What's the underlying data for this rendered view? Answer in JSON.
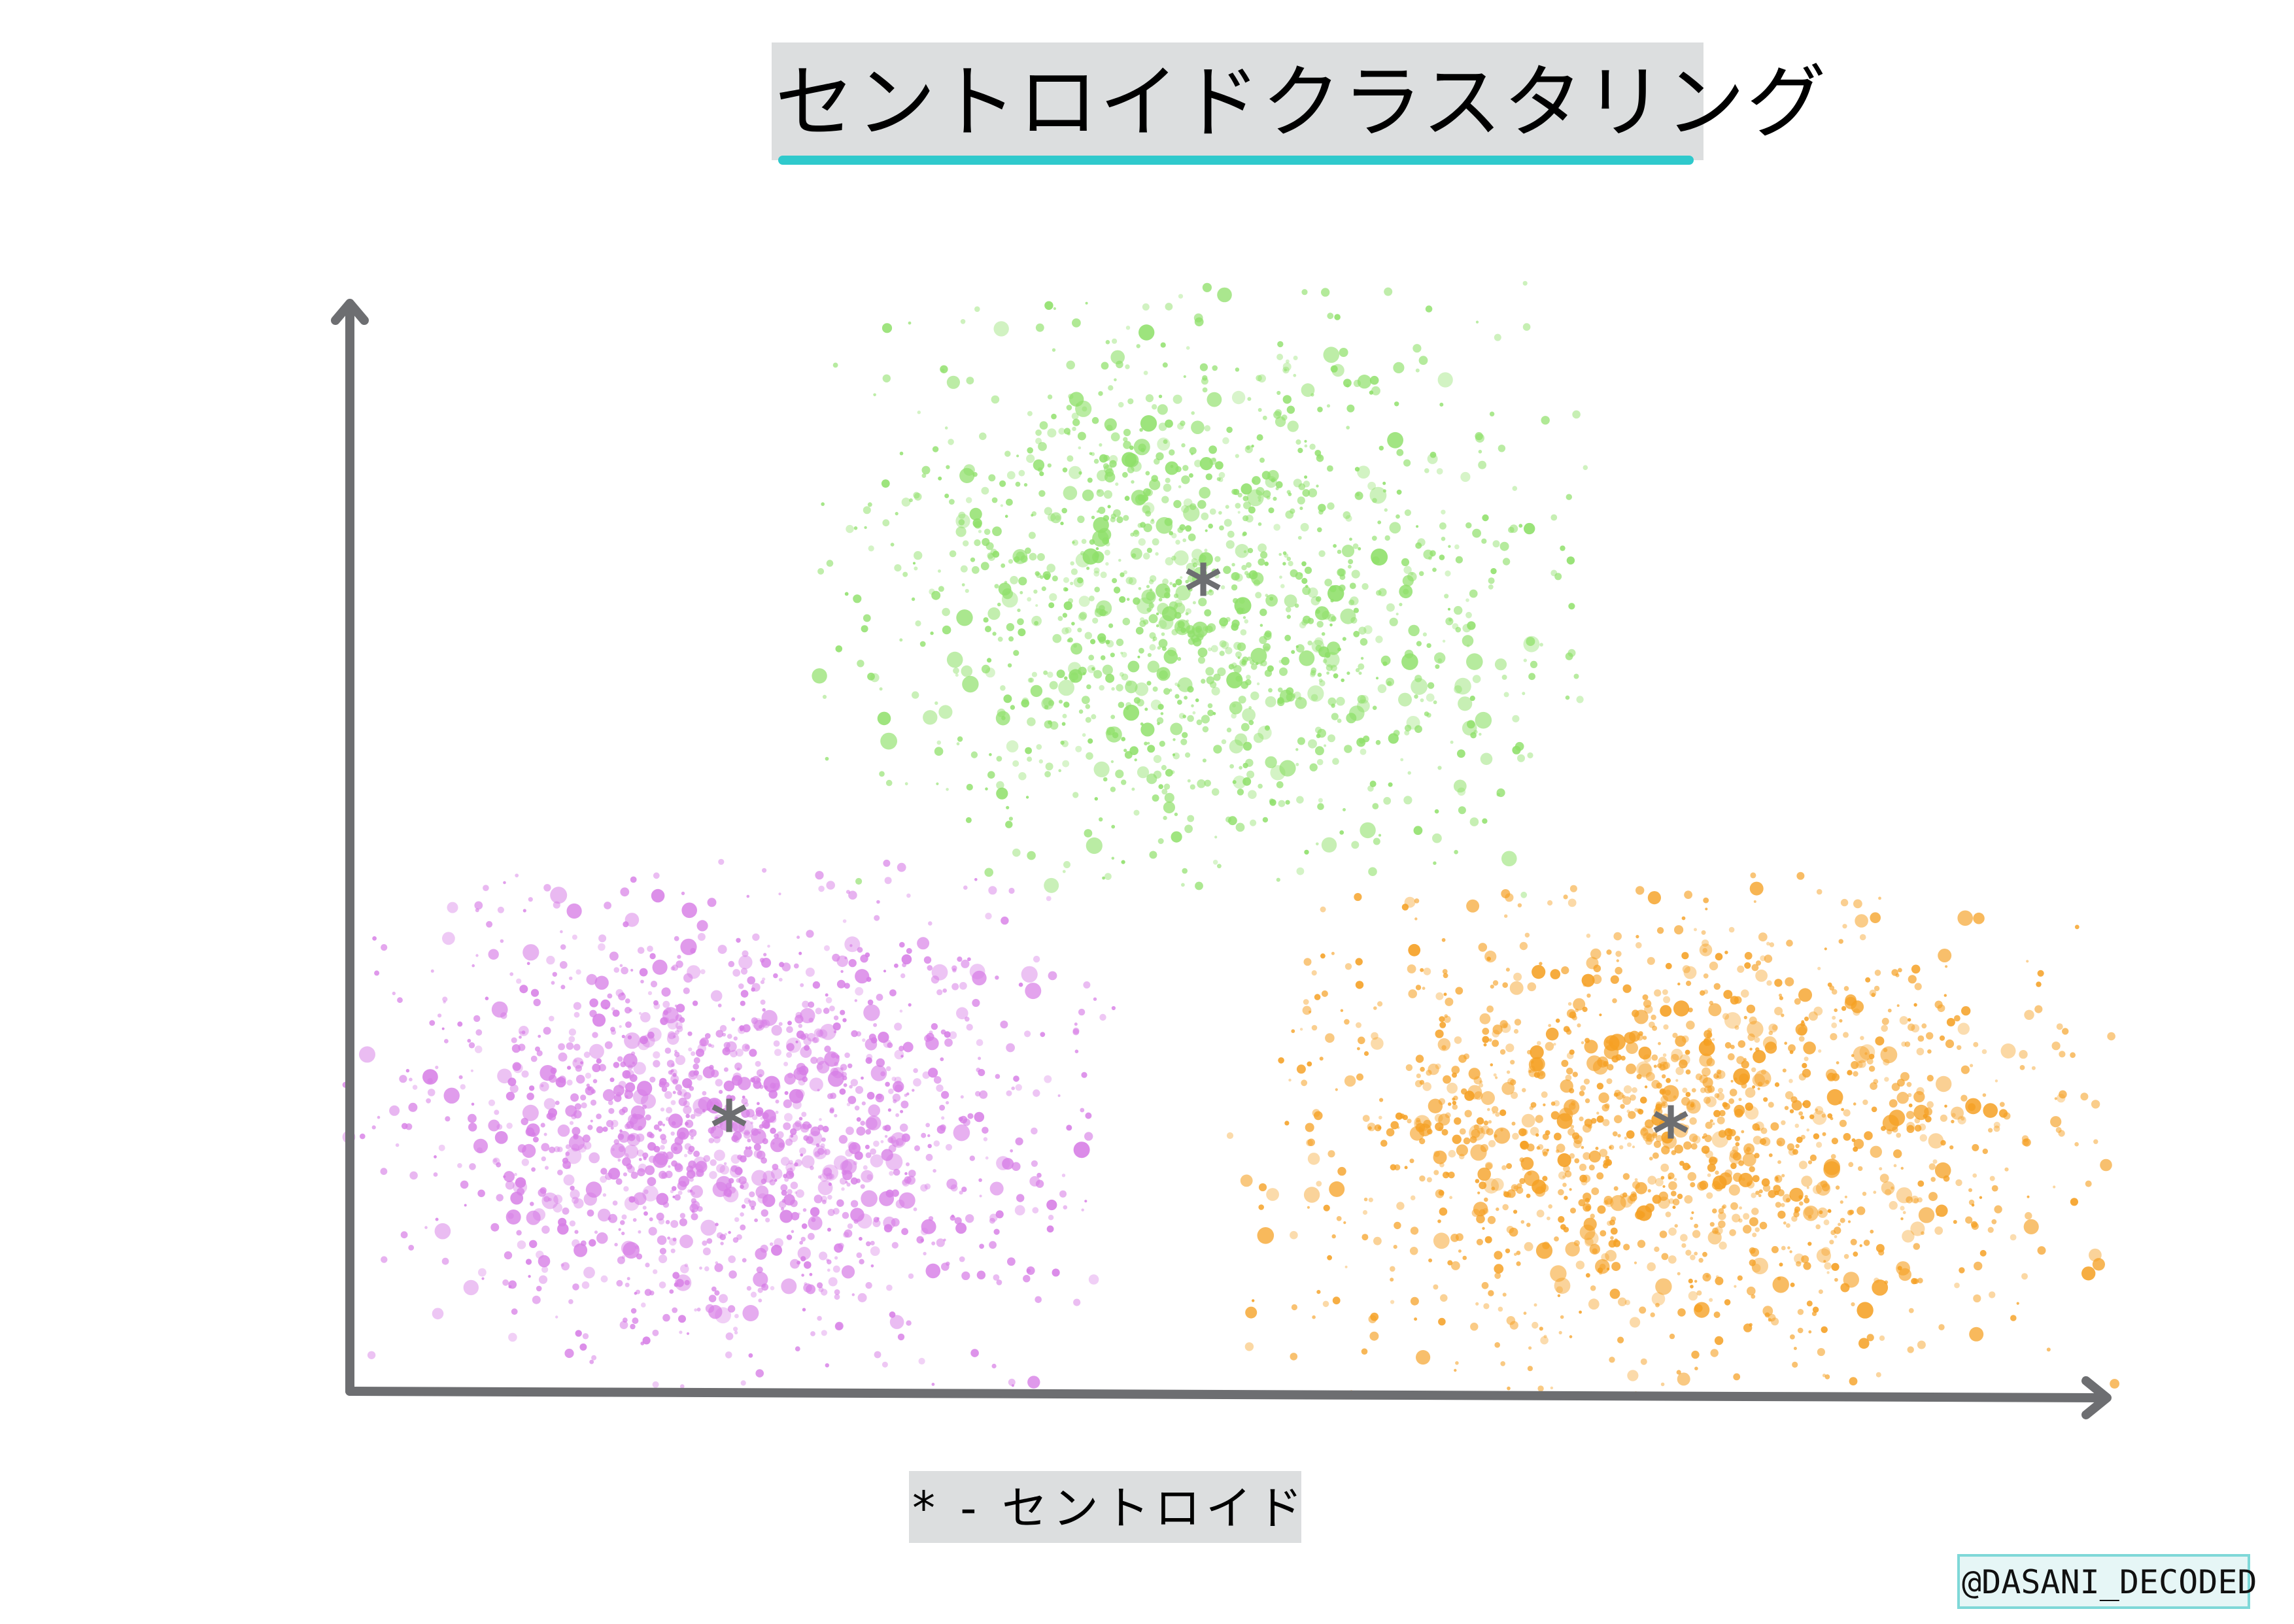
{
  "title": "セントロイドクラスタリング",
  "legend": "* - セントロイド",
  "credit": "@DASANI_DECODED",
  "colors": {
    "title_underline": "#2fc9cc",
    "axis": "#6d6e71",
    "centroid": "#6d6e71",
    "cluster_green": "#8fe06a",
    "cluster_purple": "#d77ee6",
    "cluster_orange": "#f5a023"
  },
  "clusters": [
    {
      "name": "green-cluster",
      "color_key": "cluster_green",
      "point_count": 1400,
      "seed": 11
    },
    {
      "name": "purple-cluster",
      "color_key": "cluster_purple",
      "point_count": 1500,
      "seed": 29
    },
    {
      "name": "orange-cluster",
      "color_key": "cluster_orange",
      "point_count": 1500,
      "seed": 47
    }
  ],
  "centroid_marker": "*"
}
